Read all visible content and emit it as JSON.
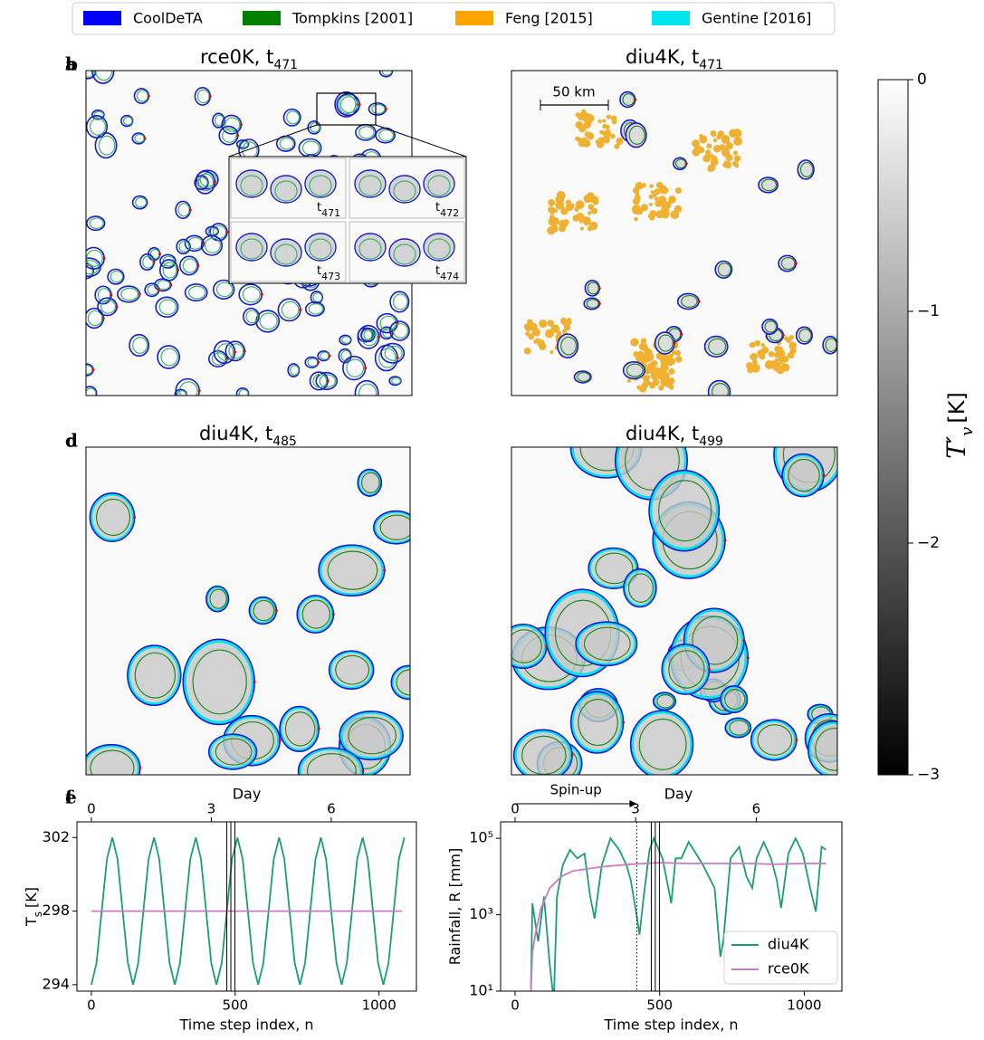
{
  "legend": {
    "entries": [
      {
        "name": "CoolDeTA",
        "color": "#0000ff"
      },
      {
        "name": "Tompkins [2001]",
        "color": "#008000"
      },
      {
        "name": "Feng [2015]",
        "color": "#ffa500"
      },
      {
        "name": "Gentine [2016]",
        "color": "#00e5ee"
      }
    ]
  },
  "panels": [
    {
      "letter": "a",
      "title": "rce0K, t",
      "title_sub": "471",
      "inset_labels": [
        {
          "main": "t",
          "sub": "471"
        },
        {
          "main": "t",
          "sub": "472"
        },
        {
          "main": "t",
          "sub": "473"
        },
        {
          "main": "t",
          "sub": "474"
        }
      ]
    },
    {
      "letter": "b",
      "title": "diu4K, t",
      "title_sub": "471",
      "scale_bar": "50 km"
    },
    {
      "letter": "c",
      "title": "diu4K, t",
      "title_sub": "485"
    },
    {
      "letter": "d",
      "title": "diu4K, t",
      "title_sub": "499"
    }
  ],
  "colorbar": {
    "label": "T′",
    "label_sub": "v",
    "label_unit": "[K]",
    "lim": [
      -3,
      0
    ],
    "ticks": [
      0,
      {
        "value": -1,
        "label": "−1"
      },
      {
        "value": -2,
        "label": "−2"
      },
      {
        "value": -3,
        "label": "−3"
      }
    ],
    "colors": [
      "#000000",
      "#ffffff"
    ]
  },
  "chart_data": [
    {
      "type": "line",
      "letter": "e",
      "xlabel": "Time step index, n",
      "x2label": "Day",
      "ylabel": "T",
      "ylabel_sub": "s",
      "ylabel_unit": "[K]",
      "xlim": [
        -50,
        1130
      ],
      "xticks": [
        0,
        500,
        1000
      ],
      "x2lim": [
        -0.36,
        8.13
      ],
      "x2ticks": [
        0,
        3,
        6
      ],
      "ylim": [
        293.65,
        302.85
      ],
      "yticks": [
        294,
        298,
        302
      ],
      "vlines": [
        471,
        485,
        499
      ],
      "series": [
        {
          "name": "diu4K",
          "color": "#1b9e77",
          "x": [
            0,
            18,
            36,
            54,
            73,
            91,
            109,
            127,
            145,
            163,
            181,
            199,
            218,
            236,
            254,
            272,
            290,
            308,
            326,
            344,
            363,
            381,
            399,
            417,
            435,
            453,
            471,
            489,
            508,
            526,
            544,
            562,
            580,
            598,
            616,
            634,
            653,
            671,
            689,
            707,
            725,
            743,
            761,
            779,
            798,
            816,
            834,
            852,
            870,
            888,
            906,
            924,
            943,
            961,
            979,
            997,
            1015,
            1033,
            1051,
            1069,
            1088
          ],
          "values": [
            294,
            295.17,
            298,
            300.83,
            302,
            300.83,
            298,
            295.17,
            294,
            295.17,
            298,
            300.83,
            302,
            300.83,
            298,
            295.17,
            294,
            295.17,
            298,
            300.83,
            302,
            300.83,
            298,
            295.17,
            294,
            295.17,
            298,
            300.83,
            302,
            300.83,
            298,
            295.17,
            294,
            295.17,
            298,
            300.83,
            302,
            300.83,
            298,
            295.17,
            294,
            295.17,
            298,
            300.83,
            302,
            300.83,
            298,
            295.17,
            294,
            295.17,
            298,
            300.83,
            302,
            300.83,
            298,
            295.17,
            294,
            295.17,
            298,
            300.83,
            302
          ]
        },
        {
          "name": "rce0K",
          "color": "#c77cc2",
          "x": [
            0,
            1080
          ],
          "values": [
            298,
            298
          ]
        }
      ]
    },
    {
      "type": "line",
      "letter": "f",
      "xlabel": "Time step index, n",
      "x2label": "Day",
      "ylabel": "Rainfall, R [mm]",
      "log_y": true,
      "xlim": [
        -50,
        1130
      ],
      "xticks": [
        0,
        500,
        1000
      ],
      "x2lim": [
        -0.36,
        8.13
      ],
      "x2ticks": [
        0,
        3,
        6
      ],
      "ylim": [
        10,
        270000
      ],
      "yticks": [
        {
          "value": 10,
          "label": "10¹"
        },
        {
          "value": 1000,
          "label": "10³"
        },
        {
          "value": 100000,
          "label": "10⁵"
        }
      ],
      "vlines": [
        471,
        485,
        499
      ],
      "spinup_label": "Spin-up",
      "spinup_end": 421,
      "legend": "lower right",
      "series": [
        {
          "name": "diu4K",
          "color": "#1b9e77",
          "x": [
            55,
            60,
            80,
            100,
            120,
            130,
            135,
            145,
            165,
            190,
            215,
            240,
            260,
            275,
            300,
            330,
            360,
            385,
            400,
            420,
            430,
            445,
            465,
            480,
            510,
            540,
            555,
            575,
            600,
            625,
            650,
            690,
            710,
            720,
            745,
            775,
            800,
            820,
            835,
            860,
            885,
            905,
            920,
            945,
            970,
            995,
            1020,
            1040,
            1060,
            1075
          ],
          "values": [
            10,
            2000,
            200,
            3000,
            50,
            10,
            10,
            3000,
            20000,
            50000,
            30000,
            40000,
            3000,
            800,
            20000,
            100000,
            50000,
            20000,
            8000,
            1000,
            300,
            3000,
            50000,
            100000,
            30000,
            2000,
            30000,
            30000,
            80000,
            40000,
            20000,
            5000,
            80,
            200,
            30000,
            60000,
            10000,
            5000,
            30000,
            80000,
            30000,
            8000,
            1500,
            40000,
            100000,
            40000,
            5000,
            1200,
            60000,
            50000
          ]
        },
        {
          "name": "rce0K",
          "color": "#c77cc2",
          "x": [
            55,
            60,
            70,
            90,
            120,
            160,
            200,
            300,
            400,
            500,
            600,
            700,
            800,
            900,
            1000,
            1075
          ],
          "values": [
            10,
            100,
            300,
            1500,
            5000,
            10000,
            14000,
            18000,
            21000,
            23000,
            22000,
            22000,
            22000,
            21000,
            22000,
            22000
          ]
        }
      ]
    }
  ]
}
